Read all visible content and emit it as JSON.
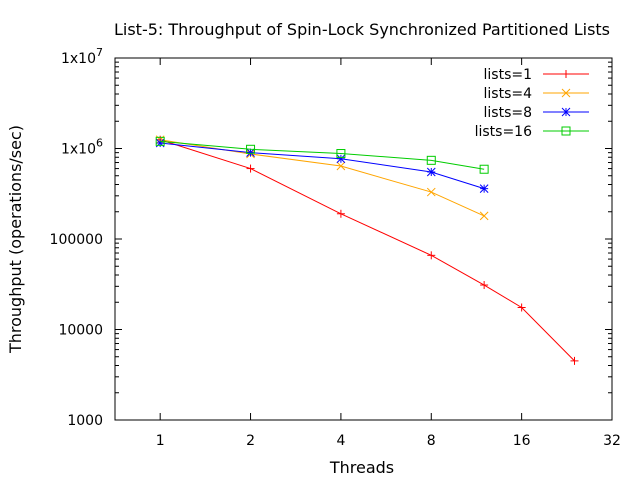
{
  "chart_data": {
    "type": "line",
    "title": "List-5: Throughput of Spin-Lock Synchronized Partitioned Lists",
    "xlabel": "Threads",
    "ylabel": "Throughput (operations/sec)",
    "xscale": "log2",
    "yscale": "log10",
    "xlim": [
      0.7071,
      32
    ],
    "ylim": [
      1000,
      10000000
    ],
    "x_ticks": [
      1,
      2,
      4,
      8,
      16,
      32
    ],
    "x_tick_labels": [
      "1",
      "2",
      "4",
      "8",
      "16",
      "32"
    ],
    "y_ticks": [
      1000,
      10000,
      100000,
      1000000,
      10000000
    ],
    "y_tick_labels": [
      {
        "base": "1000",
        "exp": ""
      },
      {
        "base": "10000",
        "exp": ""
      },
      {
        "base": "100000",
        "exp": ""
      },
      {
        "base": "1x10",
        "exp": "6"
      },
      {
        "base": "1x10",
        "exp": "7"
      }
    ],
    "grid": false,
    "legend_position": "top-right",
    "series": [
      {
        "name": "lists=1",
        "color": "#ff0000",
        "marker": "plus",
        "x": [
          1,
          2,
          4,
          8,
          12,
          16,
          24
        ],
        "y": [
          1250000,
          600000,
          190000,
          66000,
          31000,
          17500,
          4500
        ]
      },
      {
        "name": "lists=4",
        "color": "#ffa500",
        "marker": "cross",
        "x": [
          1,
          2,
          4,
          8,
          12
        ],
        "y": [
          1250000,
          870000,
          640000,
          330000,
          180000
        ]
      },
      {
        "name": "lists=8",
        "color": "#0000ff",
        "marker": "star",
        "x": [
          1,
          2,
          4,
          8,
          12
        ],
        "y": [
          1150000,
          900000,
          770000,
          550000,
          360000
        ]
      },
      {
        "name": "lists=16",
        "color": "#00cc00",
        "marker": "square",
        "x": [
          1,
          2,
          4,
          8,
          12
        ],
        "y": [
          1200000,
          980000,
          880000,
          740000,
          590000
        ]
      }
    ]
  }
}
